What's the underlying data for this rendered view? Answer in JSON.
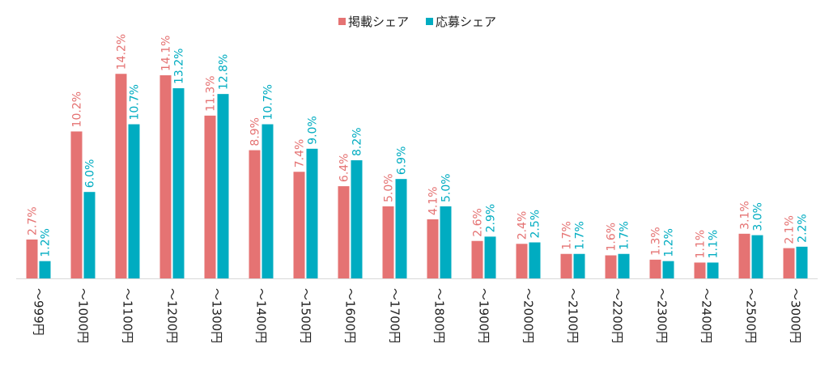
{
  "chart_data": {
    "type": "bar",
    "categories": [
      "～999円",
      "～1000円",
      "～1100円",
      "～1200円",
      "～1300円",
      "～1400円",
      "～1500円",
      "～1600円",
      "～1700円",
      "～1800円",
      "～1900円",
      "～2000円",
      "～2100円",
      "～2200円",
      "～2300円",
      "～2400円",
      "～2500円",
      "～3000円"
    ],
    "series": [
      {
        "name": "掲載シェア",
        "color": "#e57373",
        "value_labels": [
          "2.7%",
          "10.2%",
          "14.2%",
          "14.1%",
          "11.3%",
          "8.9%",
          "7.4%",
          "6.4%",
          "5.0%",
          "4.1%",
          "2.6%",
          "2.4%",
          "1.7%",
          "1.6%",
          "1.3%",
          "1.1%",
          "3.1%",
          "2.1%"
        ],
        "values": [
          2.7,
          10.2,
          14.2,
          14.1,
          11.3,
          8.9,
          7.4,
          6.4,
          5.0,
          4.1,
          2.6,
          2.4,
          1.7,
          1.6,
          1.3,
          1.1,
          3.1,
          2.1
        ]
      },
      {
        "name": "応募シェア",
        "color": "#00acc1",
        "value_labels": [
          "1.2%",
          "6.0%",
          "10.7%",
          "13.2%",
          "12.8%",
          "10.7%",
          "9.0%",
          "8.2%",
          "6.9%",
          "5.0%",
          "2.9%",
          "2.5%",
          "1.7%",
          "1.7%",
          "1.2%",
          "1.1%",
          "3.0%",
          "2.2%"
        ],
        "values": [
          1.2,
          6.0,
          10.7,
          13.2,
          12.8,
          10.7,
          9.0,
          8.2,
          6.9,
          5.0,
          2.9,
          2.5,
          1.7,
          1.7,
          1.2,
          1.1,
          3.0,
          2.2
        ]
      }
    ],
    "ylim": [
      0,
      15
    ],
    "legend_position": "top-center",
    "grid": false
  }
}
